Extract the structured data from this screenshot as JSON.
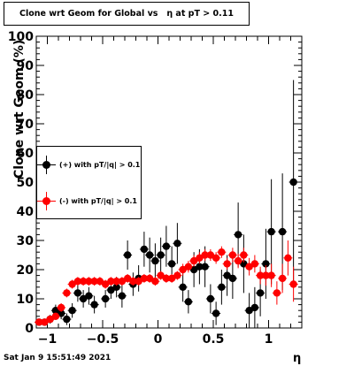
{
  "title": "Clone wrt Geom for Global vs   η at pT > 0.11",
  "footer": "Sat Jan  9 15:51:49 2021",
  "chart_data": {
    "type": "scatter",
    "xlabel": "η",
    "ylabel": "Clone wrt Geom (%)",
    "xlim": [
      -1.1,
      1.3
    ],
    "ylim": [
      0,
      100
    ],
    "x_ticks": [
      "−1",
      "−0.5",
      "0",
      "0.5",
      "1"
    ],
    "y_ticks": [
      "0",
      "10",
      "20",
      "30",
      "40",
      "50",
      "60",
      "70",
      "80",
      "90",
      "100"
    ],
    "legend_position": "left-middle",
    "series": [
      {
        "name": "(+) with pT/|q| > 0.1",
        "color": "#000000",
        "points": [
          {
            "x": -1.075,
            "y": 2,
            "err": 1
          },
          {
            "x": -1.025,
            "y": 2,
            "err": 1
          },
          {
            "x": -0.975,
            "y": 3,
            "err": 1.5
          },
          {
            "x": -0.925,
            "y": 6,
            "err": 2
          },
          {
            "x": -0.875,
            "y": 5,
            "err": 2
          },
          {
            "x": -0.825,
            "y": 3,
            "err": 2
          },
          {
            "x": -0.775,
            "y": 6,
            "err": 2.5
          },
          {
            "x": -0.725,
            "y": 12,
            "err": 3
          },
          {
            "x": -0.675,
            "y": 10,
            "err": 3
          },
          {
            "x": -0.625,
            "y": 11,
            "err": 3
          },
          {
            "x": -0.575,
            "y": 8,
            "err": 3
          },
          {
            "x": -0.475,
            "y": 10,
            "err": 3
          },
          {
            "x": -0.425,
            "y": 13,
            "err": 3
          },
          {
            "x": -0.375,
            "y": 14,
            "err": 3.5
          },
          {
            "x": -0.325,
            "y": 11,
            "err": 4
          },
          {
            "x": -0.275,
            "y": 25,
            "err": 5
          },
          {
            "x": -0.225,
            "y": 15,
            "err": 4
          },
          {
            "x": -0.175,
            "y": 17,
            "err": 4.5
          },
          {
            "x": -0.125,
            "y": 27,
            "err": 6
          },
          {
            "x": -0.075,
            "y": 25,
            "err": 6
          },
          {
            "x": -0.025,
            "y": 23,
            "err": 6
          },
          {
            "x": 0.025,
            "y": 25,
            "err": 6
          },
          {
            "x": 0.075,
            "y": 28,
            "err": 7
          },
          {
            "x": 0.125,
            "y": 22,
            "err": 6
          },
          {
            "x": 0.175,
            "y": 29,
            "err": 7
          },
          {
            "x": 0.225,
            "y": 14,
            "err": 5
          },
          {
            "x": 0.275,
            "y": 9,
            "err": 4
          },
          {
            "x": 0.325,
            "y": 20,
            "err": 6
          },
          {
            "x": 0.375,
            "y": 21,
            "err": 6
          },
          {
            "x": 0.425,
            "y": 21,
            "err": 7
          },
          {
            "x": 0.475,
            "y": 10,
            "err": 5
          },
          {
            "x": 0.525,
            "y": 5,
            "err": 4
          },
          {
            "x": 0.575,
            "y": 14,
            "err": 6
          },
          {
            "x": 0.625,
            "y": 18,
            "err": 7
          },
          {
            "x": 0.675,
            "y": 17,
            "err": 7
          },
          {
            "x": 0.725,
            "y": 32,
            "err": 11
          },
          {
            "x": 0.775,
            "y": 22,
            "err": 10
          },
          {
            "x": 0.825,
            "y": 6,
            "err": 6
          },
          {
            "x": 0.875,
            "y": 7,
            "err": 7
          },
          {
            "x": 0.925,
            "y": 12,
            "err": 8
          },
          {
            "x": 0.975,
            "y": 22,
            "err": 12
          },
          {
            "x": 1.025,
            "y": 33,
            "err": 18
          },
          {
            "x": 1.125,
            "y": 33,
            "err": 20
          },
          {
            "x": 1.225,
            "y": 50,
            "err": 35
          }
        ]
      },
      {
        "name": "(-) with pT/|q| > 0.1",
        "color": "#ff0000",
        "points": [
          {
            "x": -1.075,
            "y": 2,
            "err": 1
          },
          {
            "x": -1.025,
            "y": 2,
            "err": 1
          },
          {
            "x": -0.975,
            "y": 3,
            "err": 1
          },
          {
            "x": -0.925,
            "y": 4,
            "err": 1
          },
          {
            "x": -0.875,
            "y": 7,
            "err": 1.5
          },
          {
            "x": -0.825,
            "y": 12,
            "err": 1.5
          },
          {
            "x": -0.775,
            "y": 15,
            "err": 1.5
          },
          {
            "x": -0.725,
            "y": 16,
            "err": 1.5
          },
          {
            "x": -0.675,
            "y": 16,
            "err": 1.5
          },
          {
            "x": -0.625,
            "y": 16,
            "err": 1.5
          },
          {
            "x": -0.575,
            "y": 16,
            "err": 1.5
          },
          {
            "x": -0.525,
            "y": 16,
            "err": 1.5
          },
          {
            "x": -0.475,
            "y": 15,
            "err": 1.5
          },
          {
            "x": -0.425,
            "y": 16,
            "err": 1.5
          },
          {
            "x": -0.375,
            "y": 16,
            "err": 1.5
          },
          {
            "x": -0.325,
            "y": 16,
            "err": 1.5
          },
          {
            "x": -0.275,
            "y": 17,
            "err": 1.5
          },
          {
            "x": -0.225,
            "y": 16,
            "err": 1.5
          },
          {
            "x": -0.175,
            "y": 16,
            "err": 1.5
          },
          {
            "x": -0.125,
            "y": 17,
            "err": 1.5
          },
          {
            "x": -0.075,
            "y": 17,
            "err": 1.5
          },
          {
            "x": -0.025,
            "y": 16,
            "err": 1.5
          },
          {
            "x": 0.025,
            "y": 18,
            "err": 1.5
          },
          {
            "x": 0.075,
            "y": 17,
            "err": 1.5
          },
          {
            "x": 0.125,
            "y": 17,
            "err": 1.5
          },
          {
            "x": 0.175,
            "y": 18,
            "err": 1.5
          },
          {
            "x": 0.225,
            "y": 20,
            "err": 2
          },
          {
            "x": 0.275,
            "y": 21,
            "err": 2
          },
          {
            "x": 0.325,
            "y": 23,
            "err": 2
          },
          {
            "x": 0.375,
            "y": 24,
            "err": 2
          },
          {
            "x": 0.425,
            "y": 25,
            "err": 2
          },
          {
            "x": 0.475,
            "y": 25,
            "err": 2
          },
          {
            "x": 0.525,
            "y": 24,
            "err": 2
          },
          {
            "x": 0.575,
            "y": 26,
            "err": 2
          },
          {
            "x": 0.625,
            "y": 22,
            "err": 2
          },
          {
            "x": 0.675,
            "y": 25,
            "err": 2.5
          },
          {
            "x": 0.725,
            "y": 23,
            "err": 2.5
          },
          {
            "x": 0.775,
            "y": 25,
            "err": 2.5
          },
          {
            "x": 0.825,
            "y": 21,
            "err": 3
          },
          {
            "x": 0.875,
            "y": 22,
            "err": 3
          },
          {
            "x": 0.925,
            "y": 18,
            "err": 3
          },
          {
            "x": 0.975,
            "y": 18,
            "err": 3.5
          },
          {
            "x": 1.025,
            "y": 18,
            "err": 4
          },
          {
            "x": 1.075,
            "y": 12,
            "err": 4
          },
          {
            "x": 1.125,
            "y": 17,
            "err": 5
          },
          {
            "x": 1.175,
            "y": 24,
            "err": 6
          },
          {
            "x": 1.225,
            "y": 15,
            "err": 6
          }
        ]
      }
    ]
  }
}
